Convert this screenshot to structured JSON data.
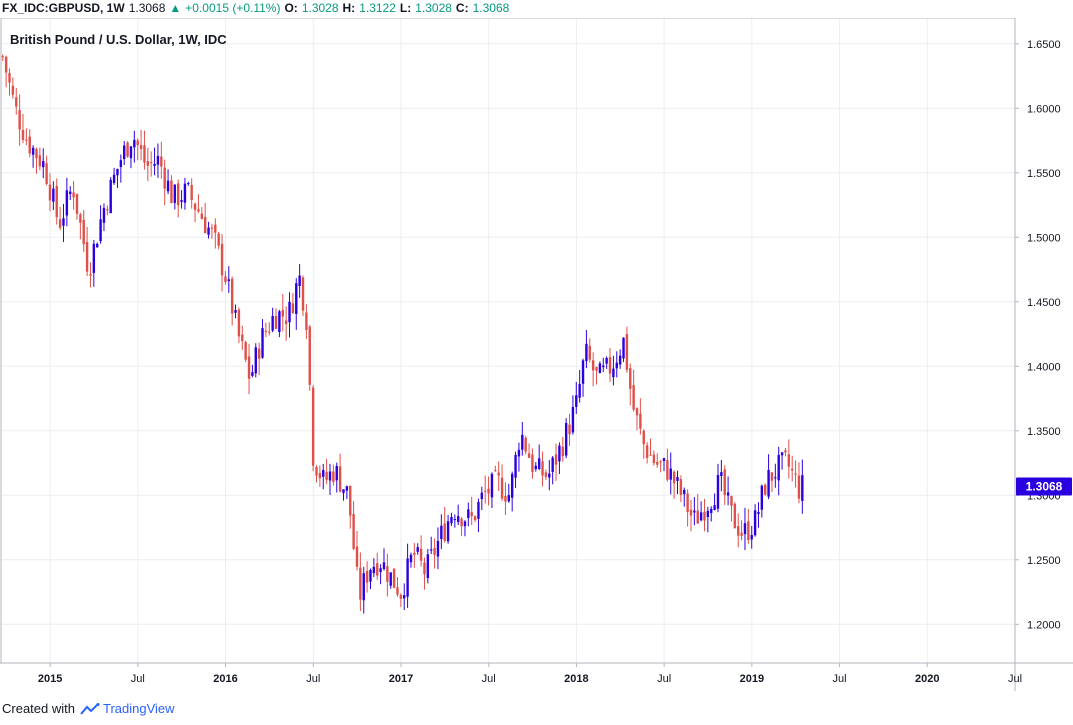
{
  "header": {
    "symbol": "FX_IDC:GBPUSD, 1W",
    "last": "1.3068",
    "change": "+0.0015 (+0.11%)",
    "o_label": "O:",
    "o_value": "1.3028",
    "h_label": "H:",
    "h_value": "1.3122",
    "l_label": "L:",
    "l_value": "1.3028",
    "c_label": "C:",
    "c_value": "1.3068",
    "up_color": "#089981"
  },
  "footer": {
    "prefix": "Created with",
    "brand": "TradingView"
  },
  "chart_data": {
    "type": "candlestick",
    "title": "British Pound / U.S. Dollar, 1W, IDC",
    "last_price_label": "1.3068",
    "ylim": [
      1.17,
      1.67
    ],
    "y_ticks": [
      "1.2000",
      "1.2500",
      "1.3000",
      "1.3500",
      "1.4000",
      "1.4500",
      "1.5000",
      "1.5500",
      "1.6000",
      "1.6500"
    ],
    "x_ticks": [
      "2015",
      "Jul",
      "2016",
      "Jul",
      "2017",
      "Jul",
      "2018",
      "Jul",
      "2019",
      "Jul",
      "2020",
      "Jul"
    ],
    "x_tick_values": [
      2015.0,
      2015.5,
      2016.0,
      2016.5,
      2017.0,
      2017.5,
      2018.0,
      2018.5,
      2019.0,
      2019.5,
      2020.0,
      2020.5
    ],
    "xlim": [
      2014.72,
      2020.5
    ],
    "up_color": "#2b00e0",
    "down_color": "#e0504a",
    "anchors": [
      [
        2014.73,
        1.64
      ],
      [
        2014.8,
        1.6
      ],
      [
        2014.87,
        1.575
      ],
      [
        2014.97,
        1.555
      ],
      [
        2015.05,
        1.51
      ],
      [
        2015.13,
        1.54
      ],
      [
        2015.22,
        1.475
      ],
      [
        2015.3,
        1.52
      ],
      [
        2015.4,
        1.56
      ],
      [
        2015.47,
        1.58
      ],
      [
        2015.55,
        1.555
      ],
      [
        2015.62,
        1.56
      ],
      [
        2015.7,
        1.53
      ],
      [
        2015.78,
        1.535
      ],
      [
        2015.85,
        1.52
      ],
      [
        2015.93,
        1.5
      ],
      [
        2016.0,
        1.47
      ],
      [
        2016.07,
        1.425
      ],
      [
        2016.14,
        1.39
      ],
      [
        2016.2,
        1.42
      ],
      [
        2016.28,
        1.44
      ],
      [
        2016.36,
        1.44
      ],
      [
        2016.42,
        1.47
      ],
      [
        2016.46,
        1.44
      ],
      [
        2016.5,
        1.33
      ],
      [
        2016.56,
        1.31
      ],
      [
        2016.62,
        1.32
      ],
      [
        2016.7,
        1.3
      ],
      [
        2016.76,
        1.22
      ],
      [
        2016.82,
        1.245
      ],
      [
        2016.88,
        1.25
      ],
      [
        2016.95,
        1.235
      ],
      [
        2017.0,
        1.225
      ],
      [
        2017.07,
        1.255
      ],
      [
        2017.14,
        1.24
      ],
      [
        2017.2,
        1.26
      ],
      [
        2017.3,
        1.29
      ],
      [
        2017.4,
        1.28
      ],
      [
        2017.47,
        1.3
      ],
      [
        2017.55,
        1.31
      ],
      [
        2017.62,
        1.3
      ],
      [
        2017.68,
        1.35
      ],
      [
        2017.76,
        1.32
      ],
      [
        2017.84,
        1.315
      ],
      [
        2017.92,
        1.34
      ],
      [
        2018.0,
        1.37
      ],
      [
        2018.05,
        1.41
      ],
      [
        2018.12,
        1.39
      ],
      [
        2018.2,
        1.4
      ],
      [
        2018.27,
        1.42
      ],
      [
        2018.32,
        1.37
      ],
      [
        2018.38,
        1.34
      ],
      [
        2018.45,
        1.325
      ],
      [
        2018.52,
        1.32
      ],
      [
        2018.6,
        1.3
      ],
      [
        2018.67,
        1.28
      ],
      [
        2018.75,
        1.295
      ],
      [
        2018.82,
        1.31
      ],
      [
        2018.88,
        1.285
      ],
      [
        2018.95,
        1.27
      ],
      [
        2019.02,
        1.28
      ],
      [
        2019.08,
        1.31
      ],
      [
        2019.14,
        1.32
      ],
      [
        2019.2,
        1.325
      ],
      [
        2019.27,
        1.305
      ],
      [
        2019.29,
        1.3068
      ]
    ]
  }
}
